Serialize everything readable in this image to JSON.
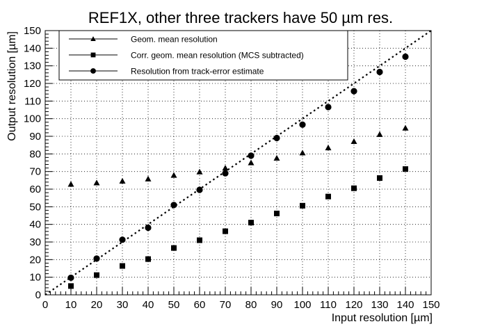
{
  "chart_data": {
    "type": "scatter",
    "title": "REF1X, other three trackers have 50 µm res.",
    "xlabel": "Input resolution [µm]",
    "ylabel": "Output resolution [µm]",
    "xlim": [
      0,
      150
    ],
    "ylim": [
      0,
      150
    ],
    "xticks": [
      0,
      10,
      20,
      30,
      40,
      50,
      60,
      70,
      80,
      90,
      100,
      110,
      120,
      130,
      140,
      150
    ],
    "yticks": [
      0,
      10,
      20,
      30,
      40,
      50,
      60,
      70,
      80,
      90,
      100,
      110,
      120,
      130,
      140,
      150
    ],
    "grid": true,
    "legend_position": "top-left",
    "reference_line": {
      "style": "dotted",
      "x": [
        0,
        150
      ],
      "y": [
        0,
        150
      ]
    },
    "series": [
      {
        "name": "Geom. mean resolution",
        "marker": "triangle",
        "x": [
          10,
          20,
          30,
          40,
          50,
          60,
          70,
          80,
          90,
          100,
          110,
          120,
          130,
          140
        ],
        "y": [
          62.8,
          63.6,
          64.6,
          65.8,
          67.9,
          69.8,
          72.0,
          75.0,
          77.6,
          80.6,
          83.5,
          87.1,
          91.1,
          94.7
        ]
      },
      {
        "name": "Corr. geom. mean resolution (MCS subtracted)",
        "marker": "square",
        "x": [
          10,
          20,
          30,
          40,
          50,
          60,
          70,
          80,
          90,
          100,
          110,
          120,
          130,
          140
        ],
        "y": [
          5.0,
          11.2,
          16.4,
          20.3,
          26.6,
          31.0,
          36.1,
          41.0,
          46.2,
          50.6,
          55.8,
          60.5,
          66.3,
          71.4
        ]
      },
      {
        "name": "Resolution from track-error estimate",
        "marker": "circle",
        "x": [
          10,
          20,
          30,
          40,
          50,
          60,
          70,
          80,
          90,
          100,
          110,
          120,
          130,
          140
        ],
        "y": [
          9.7,
          20.6,
          31.3,
          38.1,
          51.0,
          59.6,
          69.0,
          79.0,
          89.0,
          96.6,
          106.6,
          115.6,
          126.5,
          135.2
        ]
      }
    ]
  }
}
